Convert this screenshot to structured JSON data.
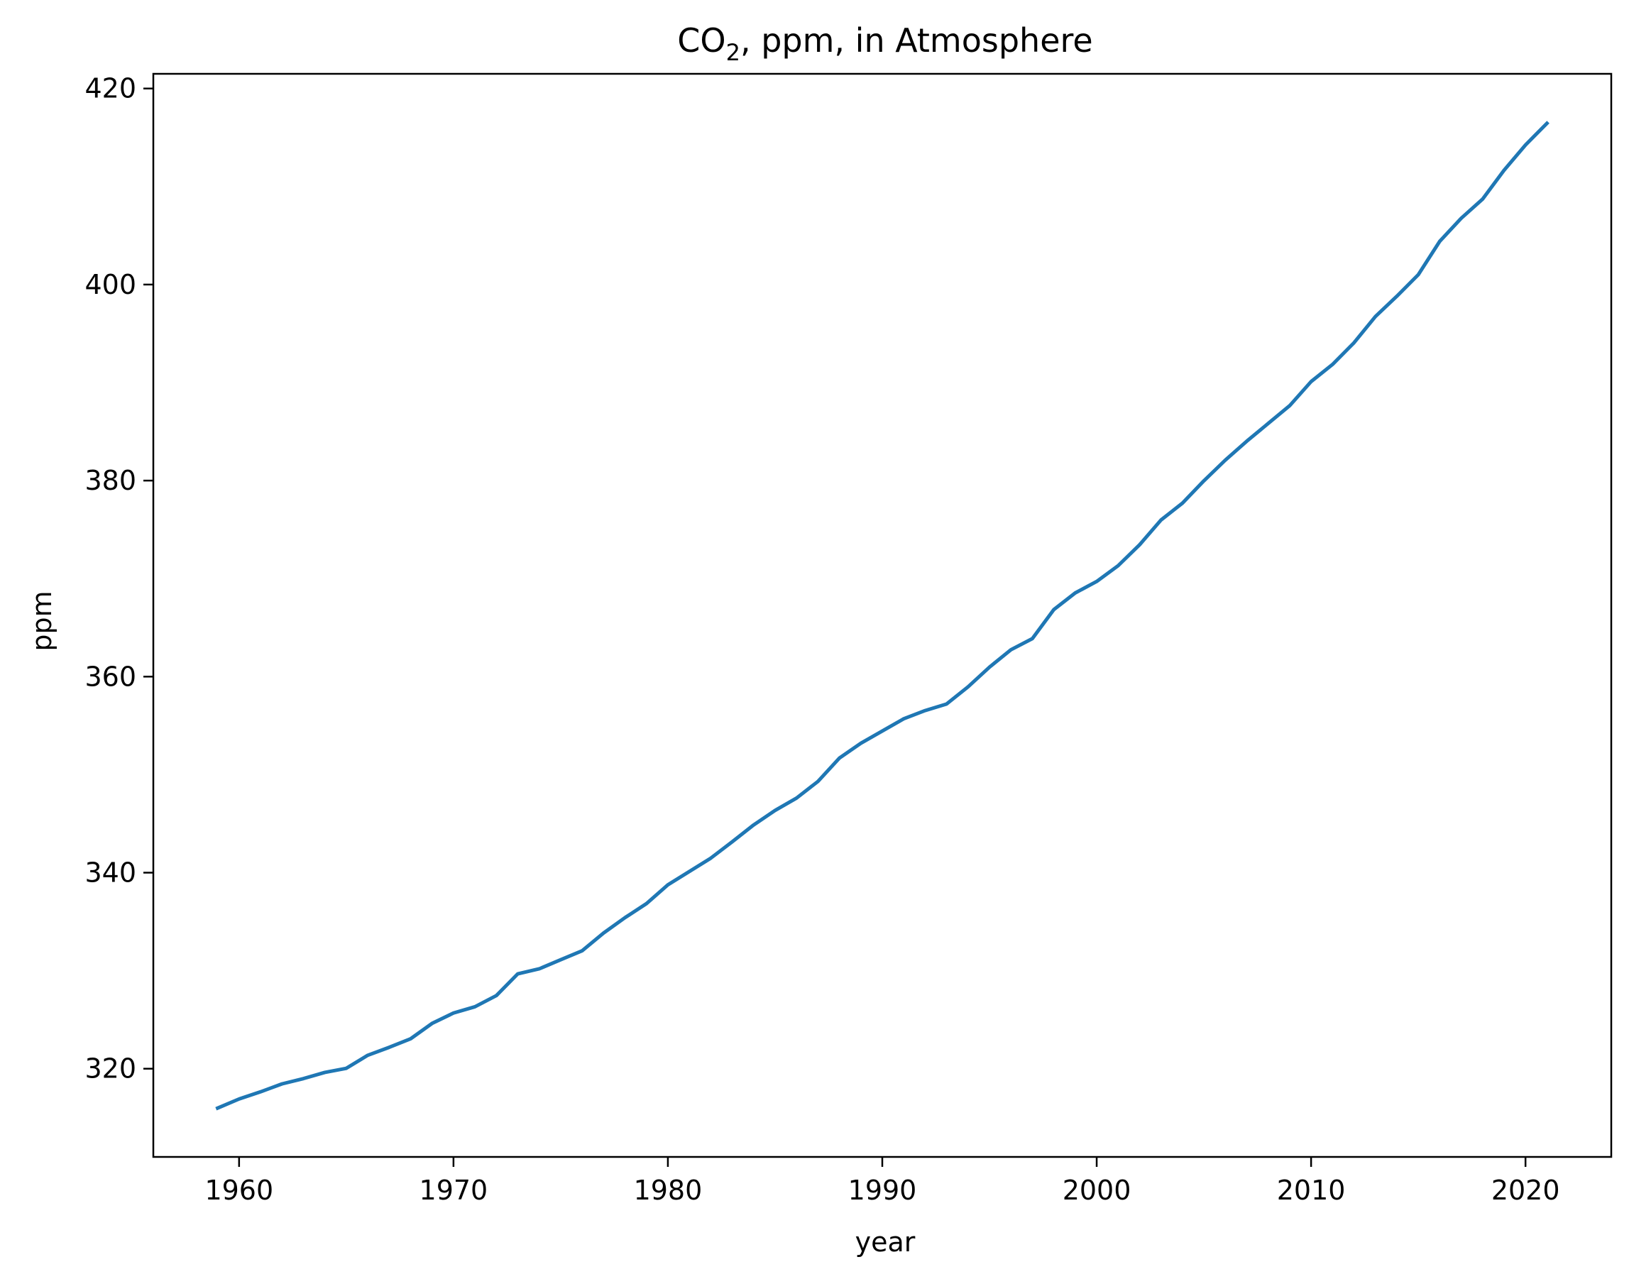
{
  "chart_data": {
    "type": "line",
    "title": "CO",
    "title_subscript": "2",
    "title_rest": ", ppm, in Atmosphere",
    "xlabel": "year",
    "ylabel": "ppm",
    "xlim": [
      1956,
      2024
    ],
    "ylim": [
      311,
      421.5
    ],
    "xticks": [
      1960,
      1970,
      1980,
      1990,
      2000,
      2010,
      2020
    ],
    "yticks": [
      320,
      340,
      360,
      380,
      400,
      420
    ],
    "grid": false,
    "line_color": "#1f77b4",
    "series": [
      {
        "x": [
          1959,
          1960,
          1961,
          1962,
          1963,
          1964,
          1965,
          1966,
          1967,
          1968,
          1969,
          1970,
          1971,
          1972,
          1973,
          1974,
          1975,
          1976,
          1977,
          1978,
          1979,
          1980,
          1981,
          1982,
          1983,
          1984,
          1985,
          1986,
          1987,
          1988,
          1989,
          1990,
          1991,
          1992,
          1993,
          1994,
          1995,
          1996,
          1997,
          1998,
          1999,
          2000,
          2001,
          2002,
          2003,
          2004,
          2005,
          2006,
          2007,
          2008,
          2009,
          2010,
          2011,
          2012,
          2013,
          2014,
          2015,
          2016,
          2017,
          2018,
          2019,
          2020,
          2021
        ],
        "values": [
          315.98,
          316.91,
          317.64,
          318.45,
          318.99,
          319.62,
          320.04,
          321.37,
          322.18,
          323.05,
          324.62,
          325.68,
          326.32,
          327.46,
          329.68,
          330.19,
          331.12,
          332.03,
          333.84,
          335.41,
          336.84,
          338.76,
          340.12,
          341.48,
          343.15,
          344.87,
          346.35,
          347.61,
          349.31,
          351.69,
          353.2,
          354.45,
          355.7,
          356.54,
          357.21,
          358.96,
          360.97,
          362.74,
          363.88,
          366.84,
          368.54,
          369.71,
          371.32,
          373.45,
          375.98,
          377.7,
          379.98,
          382.09,
          384.02,
          385.83,
          387.64,
          390.1,
          391.85,
          394.06,
          396.74,
          398.81,
          401.01,
          404.41,
          406.76,
          408.72,
          411.66,
          414.24,
          416.45
        ]
      }
    ]
  }
}
